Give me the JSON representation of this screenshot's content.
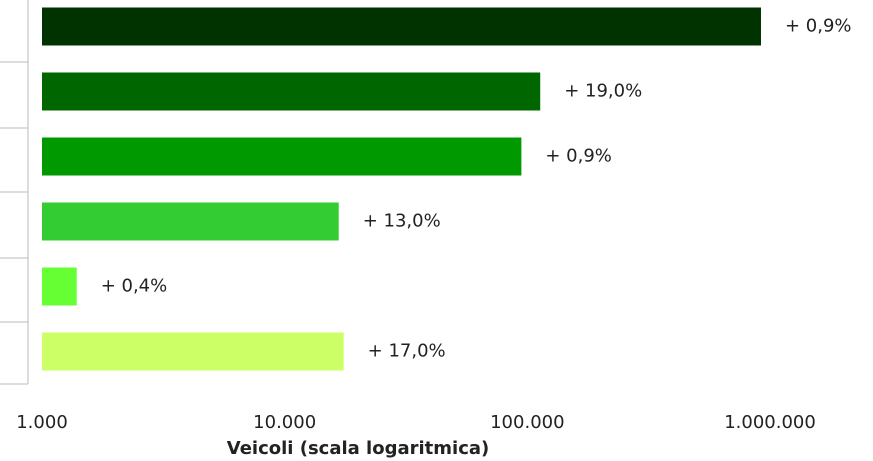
{
  "chart_data": {
    "type": "barh",
    "x_label": "Veicoli (scala logaritmica)",
    "log_scale": true,
    "grid": false,
    "categories": [
      null,
      null,
      null,
      null,
      null,
      null
    ],
    "values": [
      918000,
      113000,
      94500,
      16700,
      1390,
      17500
    ],
    "colors": [
      "#003300",
      "#006600",
      "#009900",
      "#33cc33",
      "#66ff33",
      "#ccff66"
    ],
    "annotations": [
      "+ 0,9%",
      "+ 19,0%",
      "+ 0,9%",
      "+ 13,0%",
      "+ 0,4%",
      "+ 17,0%"
    ],
    "xlim": [
      1000,
      1000000
    ],
    "xticks": [
      {
        "value": 1000,
        "label": "1.000"
      },
      {
        "value": 10000,
        "label": "10.000"
      },
      {
        "value": 100000,
        "label": "100.000"
      },
      {
        "value": 1000000,
        "label": "1.000.000"
      }
    ]
  }
}
